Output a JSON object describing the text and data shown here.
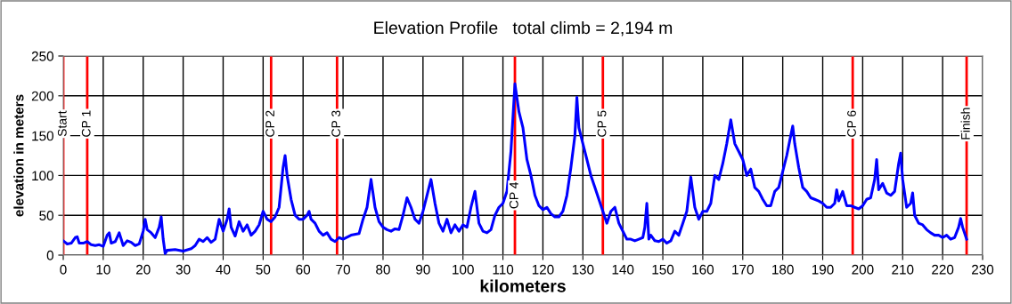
{
  "chart_data": {
    "type": "line",
    "title": "Elevation Profile   total climb = 2,194 m",
    "xlabel": "kilometers",
    "ylabel": "elevation in meters",
    "series": [
      {
        "color": "#0000ff",
        "x": [
          0,
          1,
          2,
          3,
          3.5,
          4,
          5,
          6,
          7,
          8,
          9,
          10,
          11,
          11.5,
          12,
          13,
          14,
          15,
          16,
          17,
          18,
          19,
          20,
          20.5,
          21,
          22,
          23,
          24,
          24.5,
          25,
          25.5,
          26,
          28,
          30,
          32,
          33,
          34,
          35,
          36,
          37,
          38,
          39,
          40,
          41,
          41.5,
          42,
          43,
          44,
          45,
          46,
          47,
          48,
          49,
          50,
          51,
          52,
          53,
          54,
          55,
          55.5,
          56,
          57,
          58,
          59,
          60,
          61,
          61.5,
          62,
          63,
          64,
          65,
          66,
          67,
          68,
          69,
          70,
          72,
          74,
          75,
          76,
          77,
          78,
          79,
          80,
          81,
          82,
          83,
          84,
          85,
          86,
          87,
          88,
          89,
          90,
          91,
          92,
          93,
          94,
          95,
          96,
          97,
          98,
          99,
          100,
          101,
          102,
          103,
          104,
          105,
          106,
          107,
          108,
          109,
          110,
          111,
          112,
          113,
          114,
          115,
          116,
          117,
          118,
          119,
          120,
          121,
          122,
          123,
          124,
          125,
          126,
          127,
          128,
          128.5,
          129,
          130,
          131,
          132,
          133,
          134,
          135,
          136,
          137,
          138,
          139,
          140,
          141,
          142,
          143,
          144,
          145,
          145.5,
          146,
          146.5,
          147,
          148,
          149,
          150,
          151,
          152,
          153,
          154,
          155,
          156,
          157,
          158,
          159,
          160,
          161,
          162,
          163,
          164,
          165,
          166,
          167,
          168,
          169,
          170,
          171,
          172,
          173,
          174,
          175,
          176,
          177,
          178,
          179,
          180,
          181,
          182,
          182.5,
          183,
          184,
          185,
          186,
          187,
          188,
          189,
          190,
          191,
          192,
          193,
          193.5,
          194,
          195,
          196,
          197,
          198,
          199,
          200,
          201,
          202,
          203,
          203.5,
          204,
          205,
          206,
          207,
          208,
          209,
          209.5,
          210,
          211,
          212,
          212.5,
          213,
          214,
          215,
          216,
          217,
          218,
          219,
          220,
          221,
          222,
          223,
          224,
          224.5,
          225,
          226
        ],
        "values": [
          18,
          14,
          15,
          22,
          23,
          15,
          15,
          17,
          13,
          12,
          13,
          11,
          25,
          28,
          15,
          17,
          28,
          12,
          18,
          16,
          12,
          14,
          30,
          45,
          32,
          28,
          22,
          35,
          48,
          20,
          2,
          6,
          7,
          5,
          8,
          12,
          20,
          17,
          22,
          16,
          20,
          45,
          30,
          45,
          58,
          35,
          24,
          42,
          30,
          38,
          25,
          30,
          38,
          55,
          45,
          42,
          48,
          60,
          110,
          125,
          100,
          70,
          50,
          45,
          45,
          50,
          55,
          45,
          40,
          30,
          25,
          28,
          20,
          17,
          22,
          20,
          25,
          27,
          45,
          60,
          95,
          60,
          42,
          35,
          32,
          30,
          33,
          32,
          50,
          72,
          60,
          45,
          40,
          55,
          75,
          95,
          65,
          40,
          30,
          45,
          28,
          38,
          30,
          38,
          35,
          60,
          80,
          40,
          30,
          28,
          32,
          50,
          60,
          65,
          80,
          130,
          215,
          180,
          160,
          120,
          100,
          75,
          62,
          57,
          60,
          52,
          48,
          48,
          55,
          75,
          110,
          150,
          198,
          160,
          140,
          120,
          100,
          85,
          70,
          55,
          40,
          55,
          60,
          40,
          30,
          20,
          20,
          18,
          20,
          22,
          35,
          65,
          20,
          25,
          18,
          17,
          20,
          15,
          18,
          30,
          25,
          40,
          55,
          98,
          60,
          45,
          55,
          55,
          65,
          100,
          95,
          115,
          140,
          170,
          140,
          130,
          120,
          100,
          108,
          85,
          80,
          70,
          62,
          62,
          80,
          85,
          105,
          125,
          150,
          162,
          140,
          110,
          85,
          80,
          72,
          70,
          68,
          65,
          60,
          60,
          65,
          82,
          68,
          80,
          62,
          62,
          60,
          58,
          62,
          70,
          72,
          95,
          120,
          82,
          90,
          78,
          75,
          80,
          115,
          128,
          95,
          60,
          65,
          78,
          50,
          40,
          38,
          32,
          28,
          25,
          25,
          22,
          25,
          20,
          22,
          35,
          46,
          35,
          20
        ]
      }
    ],
    "xlim": [
      0,
      230
    ],
    "ylim": [
      0,
      250
    ],
    "xticks": [
      0,
      10,
      20,
      30,
      40,
      50,
      60,
      70,
      80,
      90,
      100,
      110,
      120,
      130,
      140,
      150,
      160,
      170,
      180,
      190,
      200,
      210,
      220,
      230
    ],
    "yticks": [
      0,
      50,
      100,
      150,
      200,
      250
    ],
    "grid": true,
    "legend": false,
    "line_style": "solid",
    "marker": "none",
    "ref_lines": [
      {
        "axis": "x",
        "value": 0,
        "label": "Start",
        "color": "#ff0000"
      },
      {
        "axis": "x",
        "value": 6,
        "label": "CP 1",
        "color": "#ff0000"
      },
      {
        "axis": "x",
        "value": 52,
        "label": "CP 2",
        "color": "#ff0000"
      },
      {
        "axis": "x",
        "value": 68.5,
        "label": "CP 3",
        "color": "#ff0000"
      },
      {
        "axis": "x",
        "value": 113,
        "label": "CP 4",
        "color": "#ff0000"
      },
      {
        "axis": "x",
        "value": 135,
        "label": "CP 5",
        "color": "#ff0000"
      },
      {
        "axis": "x",
        "value": 197.5,
        "label": "CP 6",
        "color": "#ff0000"
      },
      {
        "axis": "x",
        "value": 226,
        "label": "Finish",
        "color": "#ff0000"
      }
    ]
  }
}
